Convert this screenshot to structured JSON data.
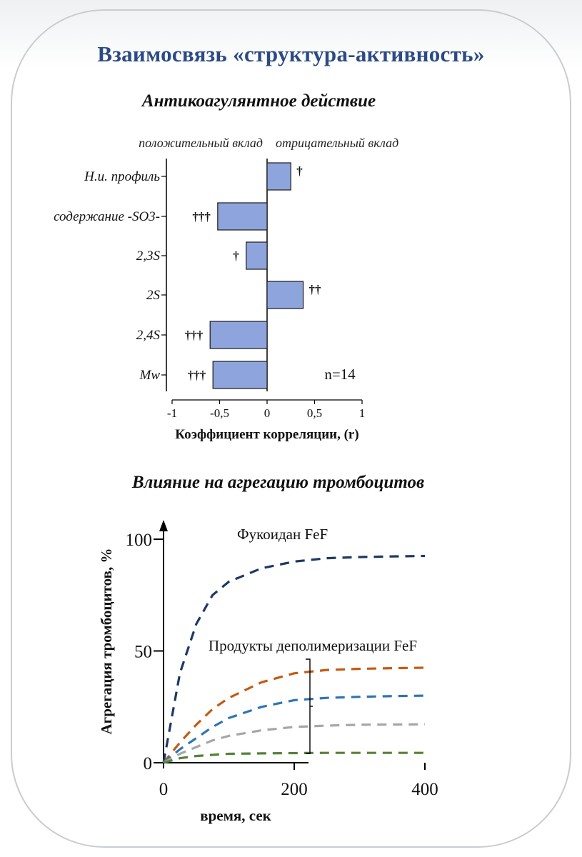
{
  "title": "Взаимосвязь «структура-активность»",
  "sections": {
    "anticoagulant_title": "Антикоагулянтное действие",
    "platelet_title": "Влияние на агрегацию тромбоцитов"
  },
  "chart_data": [
    {
      "type": "bar",
      "orientation": "horizontal",
      "header_left": "положительный вклад",
      "header_right": "отрицательный вклад",
      "categories": [
        "Н.и. профиль",
        "содержание -SO3-",
        "2,3S",
        "2S",
        "2,4S",
        "Mw"
      ],
      "values": [
        0.25,
        -0.52,
        -0.22,
        0.38,
        -0.6,
        -0.57
      ],
      "significance": [
        "†",
        "†††",
        "†",
        "††",
        "†††",
        "†††"
      ],
      "xlabel": "Коэффициент корреляции, (r)",
      "xlim": [
        -1,
        1
      ],
      "xticks": [
        "-1",
        "-0,5",
        "0",
        "0,5",
        "1"
      ],
      "annotation": "n=14",
      "bar_color": "#8ea4dc"
    },
    {
      "type": "line",
      "ylabel": "Агрегация тромбоцитов, %",
      "xlabel": "время, сек",
      "ylim": [
        0,
        100
      ],
      "xlim": [
        0,
        400
      ],
      "yticks": [
        "0",
        "50",
        "100"
      ],
      "xticks": [
        "0",
        "200",
        "400"
      ],
      "x": [
        0,
        25,
        50,
        75,
        100,
        150,
        200,
        250,
        300,
        350,
        400
      ],
      "series": [
        {
          "name": "Фукоидан FeF",
          "color": "#1f3864",
          "values": [
            0,
            40,
            62,
            75,
            81,
            87,
            90,
            91.5,
            92,
            92.3,
            92.5
          ]
        },
        {
          "name": "Продукты деполимеризации FeF",
          "color": "#c55a11",
          "values": [
            0,
            9,
            17,
            24,
            29,
            36,
            40,
            41.5,
            42,
            42.3,
            42.5
          ]
        },
        {
          "name": "",
          "color": "#2e75b6",
          "values": [
            0,
            6,
            11,
            16,
            20,
            25,
            28,
            29,
            29.5,
            29.8,
            30
          ]
        },
        {
          "name": "",
          "color": "#a6a6a6",
          "values": [
            0,
            4,
            7,
            10,
            12,
            14.5,
            16,
            16.6,
            17,
            17.1,
            17.2
          ]
        },
        {
          "name": "",
          "color": "#548235",
          "values": [
            0,
            2,
            3,
            3.5,
            4,
            4.2,
            4.3,
            4.4,
            4.4,
            4.4,
            4.4
          ]
        }
      ],
      "labels": [
        "Фукоидан FeF",
        "Продукты деполимеризации FeF"
      ]
    }
  ]
}
